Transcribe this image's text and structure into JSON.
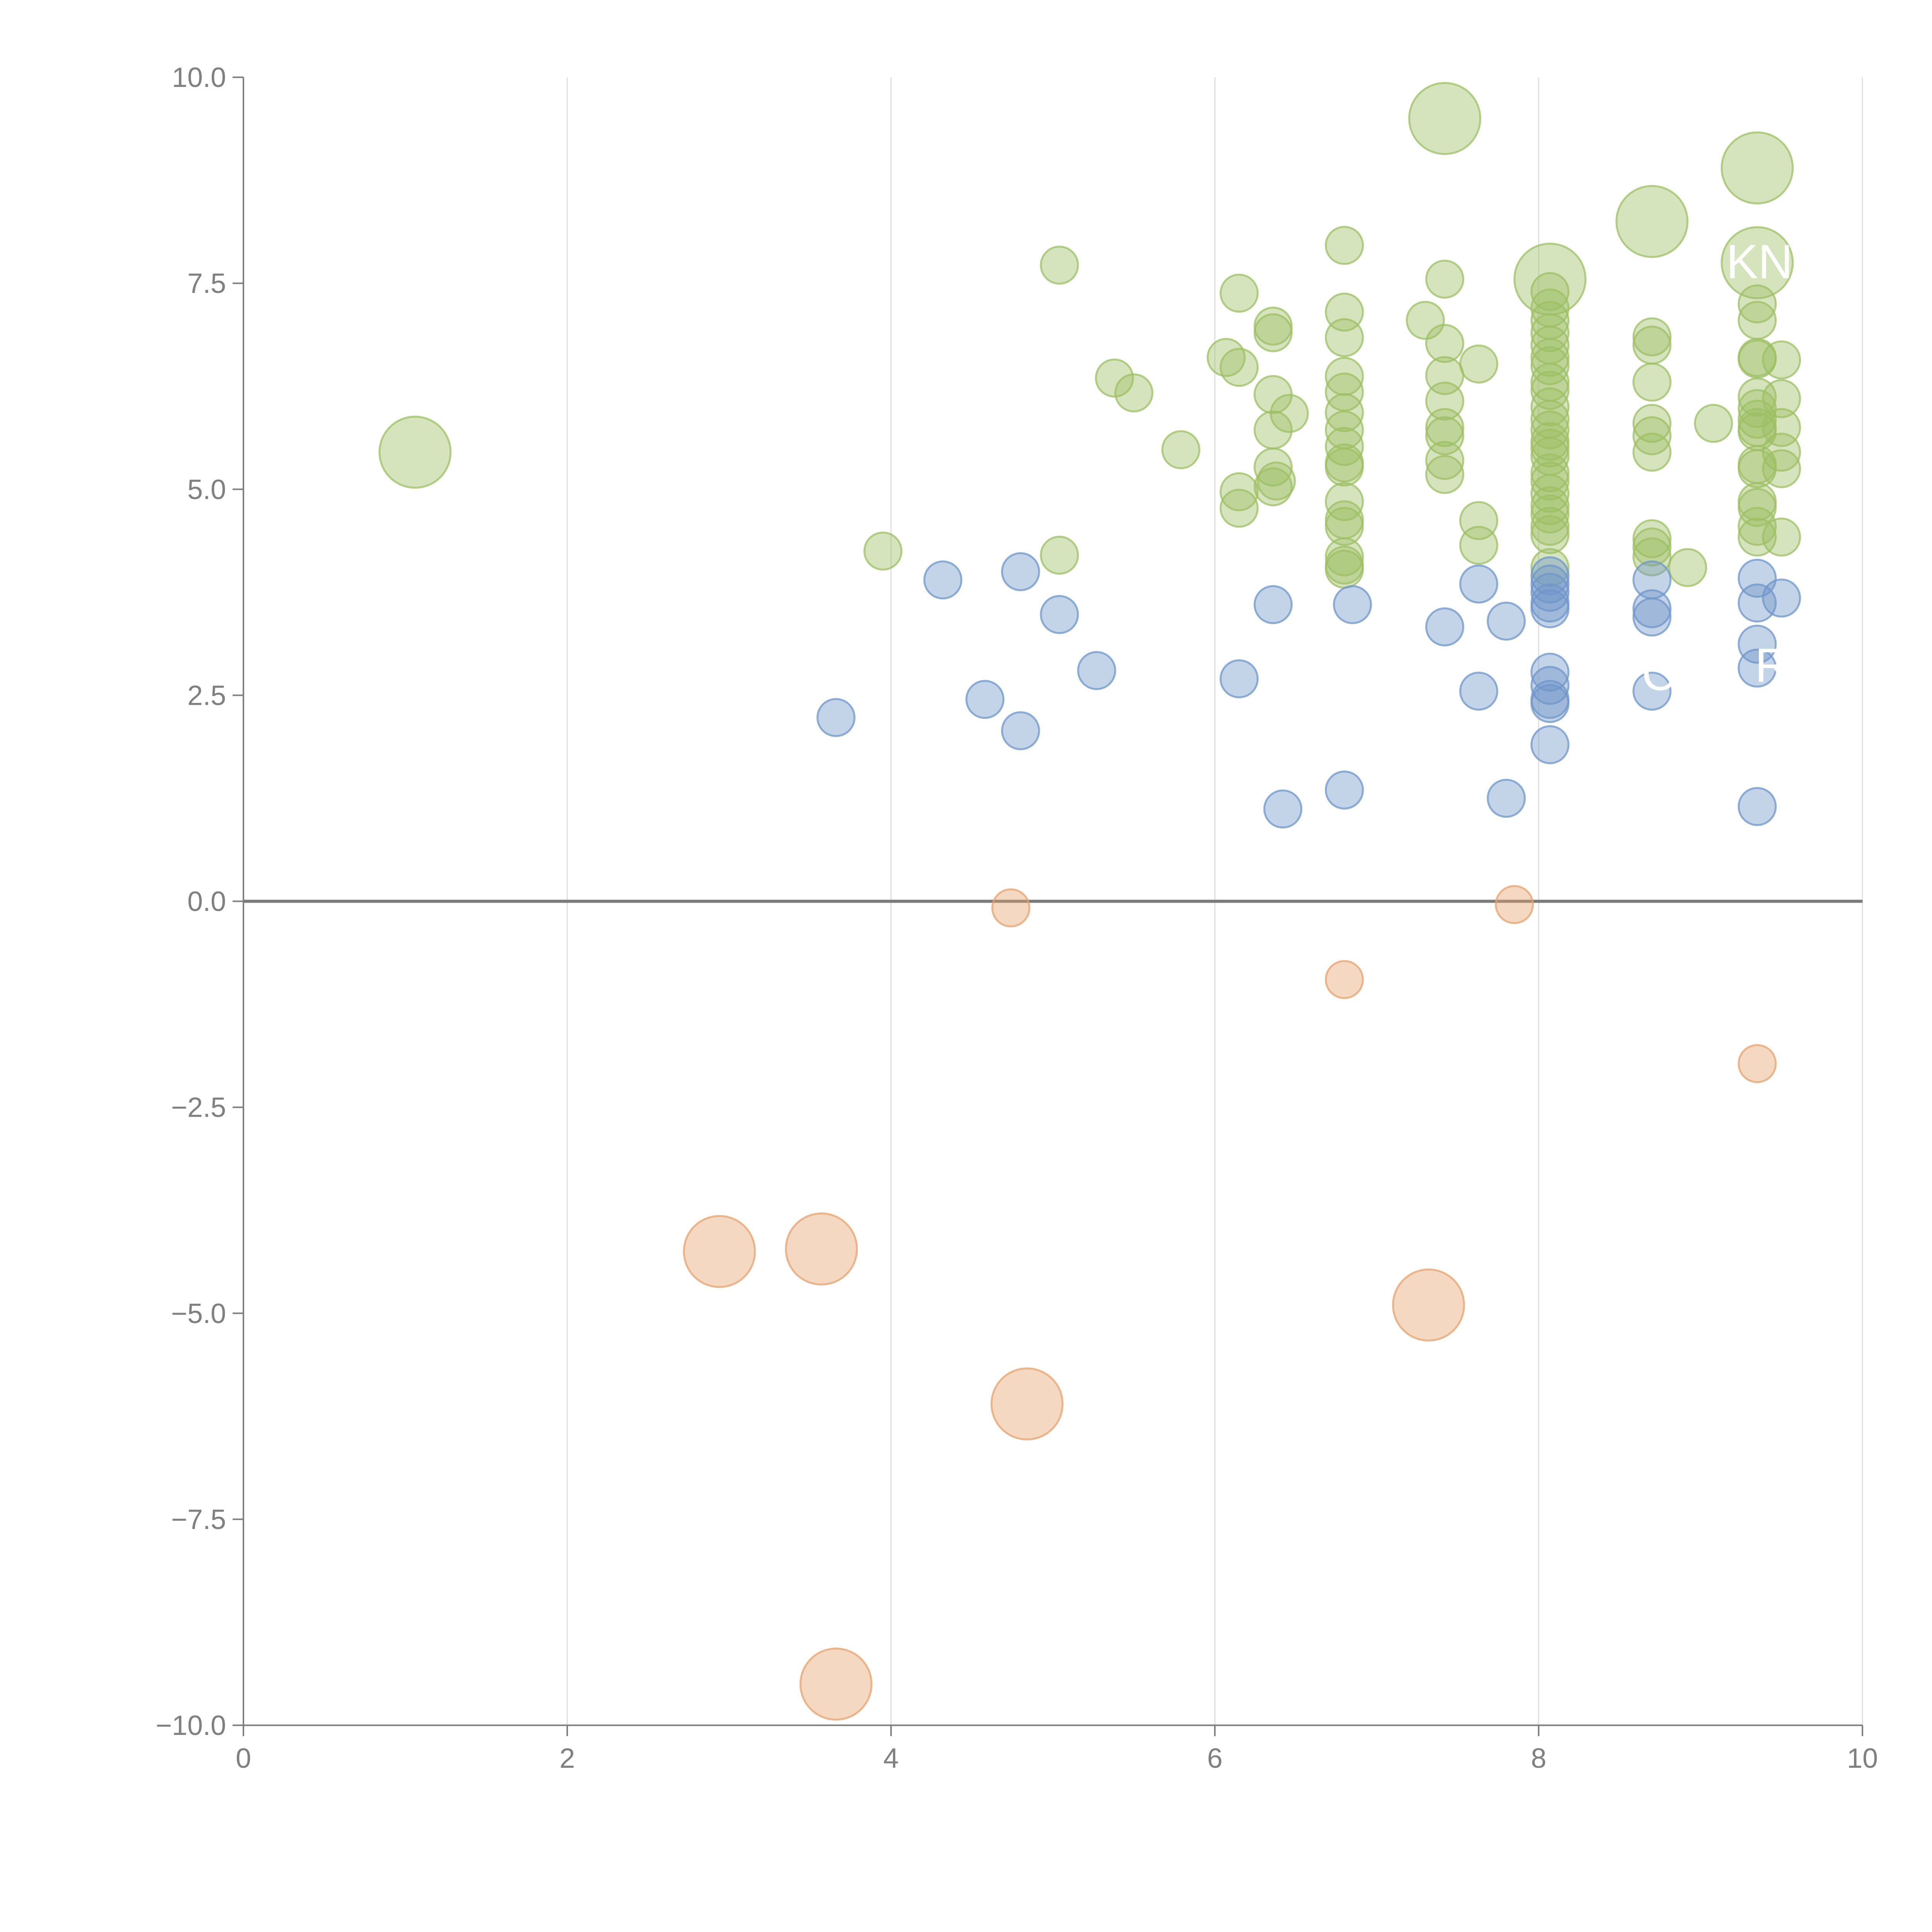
{
  "chart_data": {
    "type": "scatter",
    "title": "",
    "xlabel": "",
    "ylabel": "",
    "xlim": [
      0,
      10
    ],
    "ylim": [
      -10,
      10
    ],
    "x_ticks": [
      "0",
      "2",
      "4",
      "6",
      "8",
      "10"
    ],
    "y_ticks": [
      "−10.0",
      "−7.5",
      "−5.0",
      "−2.5",
      "0.0",
      "2.5",
      "5.0",
      "7.5",
      "10.0"
    ],
    "grid": "vertical",
    "zero_line": true,
    "colors": {
      "green": "#9dbf63",
      "blue": "#6f95c9",
      "orange": "#e6a36d"
    },
    "series": [
      {
        "color": "green",
        "points": [
          [
            1.06,
            5.45,
            2
          ],
          [
            3.95,
            4.25,
            1
          ],
          [
            5.04,
            7.72,
            1
          ],
          [
            5.04,
            4.2,
            1
          ],
          [
            5.38,
            6.35,
            1
          ],
          [
            5.5,
            6.17,
            1
          ],
          [
            5.79,
            5.48,
            1
          ],
          [
            6.07,
            6.6,
            1
          ],
          [
            6.15,
            7.38,
            1
          ],
          [
            6.15,
            6.48,
            1
          ],
          [
            6.15,
            4.97,
            1
          ],
          [
            6.15,
            4.77,
            1
          ],
          [
            6.36,
            6.98,
            1
          ],
          [
            6.36,
            6.9,
            1
          ],
          [
            6.36,
            6.15,
            1
          ],
          [
            6.36,
            5.72,
            1
          ],
          [
            6.36,
            5.27,
            1
          ],
          [
            6.36,
            5.03,
            1
          ],
          [
            6.38,
            5.1,
            1
          ],
          [
            6.46,
            5.92,
            1
          ],
          [
            6.8,
            7.96,
            1
          ],
          [
            6.8,
            7.15,
            1
          ],
          [
            6.8,
            6.84,
            1
          ],
          [
            6.8,
            6.37,
            1
          ],
          [
            6.8,
            6.18,
            1
          ],
          [
            6.8,
            5.93,
            1
          ],
          [
            6.8,
            5.72,
            1
          ],
          [
            6.8,
            5.52,
            1
          ],
          [
            6.8,
            5.32,
            1
          ],
          [
            6.8,
            5.27,
            1
          ],
          [
            6.8,
            4.85,
            1
          ],
          [
            6.8,
            4.63,
            1
          ],
          [
            6.8,
            4.55,
            1
          ],
          [
            6.8,
            4.18,
            1
          ],
          [
            6.8,
            4.08,
            1
          ],
          [
            6.8,
            4.03,
            1
          ],
          [
            7.3,
            7.05,
            1
          ],
          [
            7.42,
            9.5,
            2
          ],
          [
            7.42,
            7.55,
            1
          ],
          [
            7.42,
            6.77,
            1
          ],
          [
            7.42,
            6.38,
            1
          ],
          [
            7.42,
            6.07,
            1
          ],
          [
            7.42,
            5.75,
            1
          ],
          [
            7.42,
            5.65,
            1
          ],
          [
            7.42,
            5.35,
            1
          ],
          [
            7.42,
            5.18,
            1
          ],
          [
            7.63,
            6.52,
            1
          ],
          [
            7.63,
            4.62,
            1
          ],
          [
            7.63,
            4.32,
            1
          ],
          [
            8.07,
            7.55,
            2
          ],
          [
            8.07,
            7.4,
            1
          ],
          [
            8.07,
            7.2,
            1
          ],
          [
            8.07,
            7.05,
            1
          ],
          [
            8.07,
            6.9,
            1
          ],
          [
            8.07,
            6.75,
            1
          ],
          [
            8.07,
            6.6,
            1
          ],
          [
            8.07,
            6.5,
            1
          ],
          [
            8.07,
            6.3,
            1
          ],
          [
            8.07,
            6.2,
            1
          ],
          [
            8.07,
            6.0,
            1
          ],
          [
            8.07,
            5.85,
            1
          ],
          [
            8.07,
            5.72,
            1
          ],
          [
            8.07,
            5.58,
            1
          ],
          [
            8.07,
            5.5,
            1
          ],
          [
            8.07,
            5.4,
            1
          ],
          [
            8.07,
            5.2,
            1
          ],
          [
            8.07,
            5.1,
            1
          ],
          [
            8.07,
            4.95,
            1
          ],
          [
            8.07,
            4.8,
            1
          ],
          [
            8.07,
            4.7,
            1
          ],
          [
            8.07,
            4.55,
            1
          ],
          [
            8.07,
            4.45,
            1
          ],
          [
            8.07,
            4.05,
            1
          ],
          [
            8.7,
            8.25,
            2
          ],
          [
            8.7,
            6.85,
            1
          ],
          [
            8.7,
            6.75,
            1
          ],
          [
            8.7,
            6.3,
            1
          ],
          [
            8.7,
            5.8,
            1
          ],
          [
            8.7,
            5.65,
            1
          ],
          [
            8.7,
            5.45,
            1
          ],
          [
            8.7,
            4.4,
            1
          ],
          [
            8.7,
            4.3,
            1
          ],
          [
            8.7,
            4.18,
            1
          ],
          [
            8.92,
            4.05,
            1
          ],
          [
            9.08,
            5.8,
            1
          ],
          [
            9.35,
            8.9,
            2
          ],
          [
            9.35,
            7.75,
            2
          ],
          [
            9.35,
            7.25,
            1
          ],
          [
            9.35,
            7.05,
            1
          ],
          [
            9.35,
            6.6,
            1
          ],
          [
            9.35,
            6.58,
            1
          ],
          [
            9.35,
            6.12,
            1
          ],
          [
            9.35,
            5.98,
            1
          ],
          [
            9.35,
            5.85,
            1
          ],
          [
            9.35,
            5.75,
            1
          ],
          [
            9.35,
            5.7,
            1
          ],
          [
            9.35,
            5.3,
            1
          ],
          [
            9.35,
            5.25,
            1
          ],
          [
            9.35,
            4.85,
            1
          ],
          [
            9.35,
            4.78,
            1
          ],
          [
            9.35,
            4.55,
            1
          ],
          [
            9.35,
            4.42,
            1
          ],
          [
            9.5,
            6.57,
            1
          ],
          [
            9.5,
            6.1,
            1
          ],
          [
            9.5,
            5.75,
            1
          ],
          [
            9.5,
            5.45,
            1
          ],
          [
            9.5,
            5.25,
            1
          ],
          [
            9.5,
            4.42,
            1
          ]
        ]
      },
      {
        "color": "blue",
        "points": [
          [
            3.66,
            2.23,
            1
          ],
          [
            4.32,
            3.9,
            1
          ],
          [
            4.58,
            2.45,
            1
          ],
          [
            4.8,
            2.07,
            1
          ],
          [
            4.8,
            4.0,
            1
          ],
          [
            5.04,
            3.48,
            1
          ],
          [
            5.27,
            2.8,
            1
          ],
          [
            6.15,
            2.7,
            1
          ],
          [
            6.36,
            3.6,
            1
          ],
          [
            6.42,
            1.12,
            1
          ],
          [
            6.8,
            1.35,
            1
          ],
          [
            6.85,
            3.6,
            1
          ],
          [
            7.42,
            3.33,
            1
          ],
          [
            7.63,
            3.85,
            1
          ],
          [
            7.63,
            2.55,
            1
          ],
          [
            7.8,
            3.4,
            1
          ],
          [
            7.8,
            1.25,
            1
          ],
          [
            8.07,
            3.95,
            1
          ],
          [
            8.07,
            3.85,
            1
          ],
          [
            8.07,
            3.75,
            1
          ],
          [
            8.07,
            3.62,
            1
          ],
          [
            8.07,
            3.55,
            1
          ],
          [
            8.07,
            2.78,
            1
          ],
          [
            8.07,
            2.62,
            1
          ],
          [
            8.07,
            2.45,
            1
          ],
          [
            8.07,
            2.4,
            1
          ],
          [
            8.07,
            1.9,
            1
          ],
          [
            8.7,
            3.9,
            1
          ],
          [
            8.7,
            3.55,
            1
          ],
          [
            8.7,
            3.45,
            1
          ],
          [
            8.7,
            2.55,
            1
          ],
          [
            9.35,
            3.92,
            1
          ],
          [
            9.35,
            3.62,
            1
          ],
          [
            9.35,
            3.12,
            1
          ],
          [
            9.35,
            2.83,
            1
          ],
          [
            9.35,
            1.15,
            1
          ],
          [
            9.5,
            3.68,
            1
          ]
        ]
      },
      {
        "color": "orange",
        "points": [
          [
            2.94,
            -4.25,
            2
          ],
          [
            3.57,
            -4.22,
            2
          ],
          [
            3.66,
            -9.5,
            2
          ],
          [
            4.74,
            -0.08,
            1
          ],
          [
            4.84,
            -6.1,
            2
          ],
          [
            6.8,
            -0.95,
            1
          ],
          [
            7.32,
            -4.9,
            2
          ],
          [
            7.85,
            -0.04,
            1
          ],
          [
            9.35,
            -1.97,
            1
          ]
        ]
      }
    ],
    "annotations": [
      {
        "text": "KNO",
        "x": 9.8,
        "y": 7.75
      },
      {
        "text": "R",
        "x": 9.55,
        "y": 2.85
      },
      {
        "text": "C",
        "x": 8.85,
        "y": 2.75
      }
    ]
  }
}
